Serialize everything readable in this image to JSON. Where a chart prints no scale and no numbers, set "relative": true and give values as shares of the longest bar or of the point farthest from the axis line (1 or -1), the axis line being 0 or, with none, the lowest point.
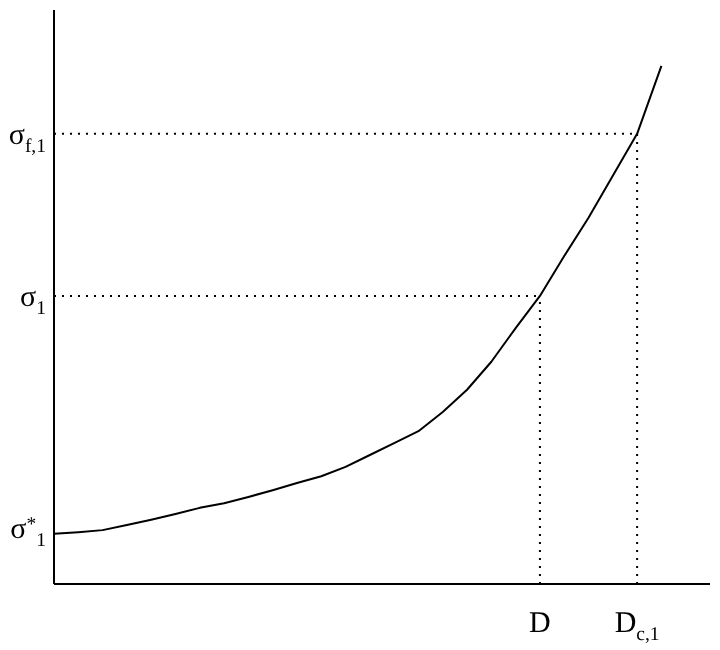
{
  "chart_data": {
    "type": "line",
    "relative": true,
    "marker": "none",
    "categories": [
      null,
      null,
      null,
      null,
      null,
      null,
      null,
      null,
      null,
      null,
      null,
      null,
      null,
      null,
      null,
      null,
      null,
      null,
      null,
      null,
      "D",
      null,
      null,
      null,
      "D$_{c,1}$",
      null,
      null,
      null
    ],
    "series": [
      {
        "color": "#000000",
        "values": [
          0.097,
          0.1,
          0.104,
          0.114,
          0.124,
          0.135,
          0.147,
          0.156,
          0.168,
          0.181,
          0.195,
          0.208,
          0.226,
          0.249,
          0.272,
          0.295,
          0.332,
          0.375,
          0.429,
          0.494,
          0.556,
          0.633,
          0.707,
          0.788,
          0.869,
          1,
          null,
          null
        ]
      }
    ],
    "ref_lines": [
      {
        "axis": "y",
        "value": 0.869,
        "label": "σ$_{f,1}$",
        "line_style": "dotted"
      },
      {
        "axis": "y",
        "value": 0.556,
        "label": "σ$_{1}$",
        "line_style": "dotted"
      },
      {
        "axis": "x",
        "value": "D",
        "line_style": "dotted"
      },
      {
        "axis": "x",
        "value": "D$_{c,1}$",
        "line_style": "dotted"
      }
    ],
    "annotations": [
      "σ$^{*}$$_{1}$"
    ]
  }
}
